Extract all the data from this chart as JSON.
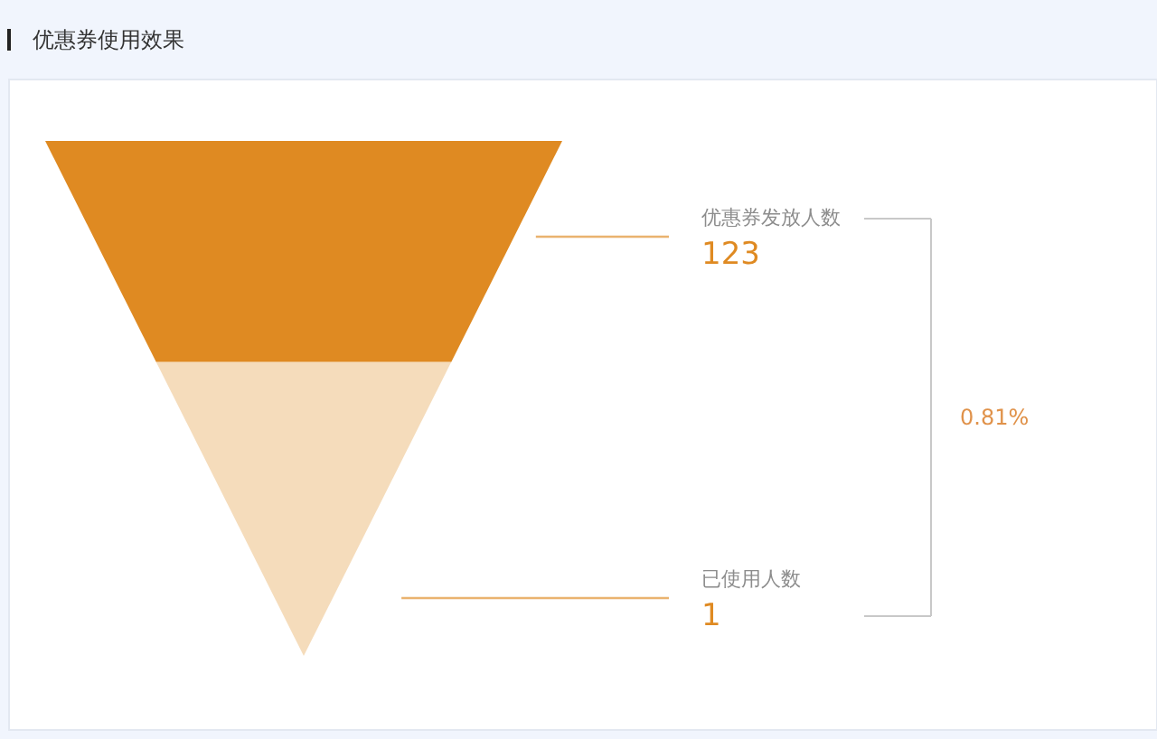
{
  "chart_data": {
    "type": "other",
    "title": "优惠券使用效果",
    "categories": [
      "优惠券发放人数",
      "已使用人数"
    ],
    "values": [
      123,
      1
    ],
    "colors": [
      "#df8a22",
      "#f5dcbb"
    ],
    "data_labels": true,
    "annotations": [
      "0.81%"
    ]
  }
}
